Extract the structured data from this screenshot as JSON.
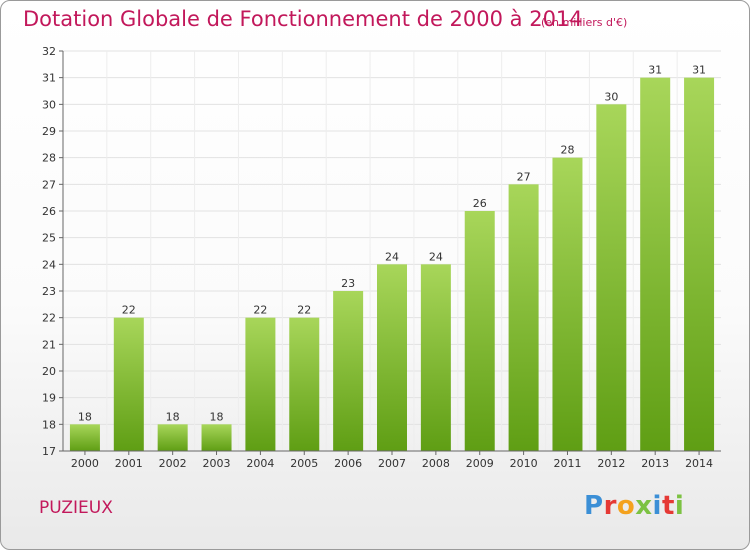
{
  "header": {
    "title": "Dotation Globale de Fonctionnement de 2000 à 2014",
    "unit_note": "(en milliers d'€)"
  },
  "footer": {
    "commune": "PUZIEUX",
    "logo_text": "Proxiti"
  },
  "colors": {
    "accent": "#c2185b",
    "bar_top": "#a8d65a",
    "bar_bottom": "#5f9e14",
    "logo_letters": [
      "#3b8fd6",
      "#e53935",
      "#f4a21e",
      "#7cc242",
      "#3b8fd6",
      "#e53935",
      "#7cc242"
    ]
  },
  "chart_data": {
    "type": "bar",
    "categories": [
      "2000",
      "2001",
      "2002",
      "2003",
      "2004",
      "2005",
      "2006",
      "2007",
      "2008",
      "2009",
      "2010",
      "2011",
      "2012",
      "2013",
      "2014"
    ],
    "values": [
      18,
      22,
      18,
      18,
      22,
      22,
      23,
      24,
      24,
      26,
      27,
      28,
      30,
      31,
      31
    ],
    "ylim": [
      17,
      32
    ],
    "yticks": [
      17,
      18,
      19,
      20,
      21,
      22,
      23,
      24,
      25,
      26,
      27,
      28,
      29,
      30,
      31,
      32
    ],
    "grid": true,
    "legend": "none"
  }
}
